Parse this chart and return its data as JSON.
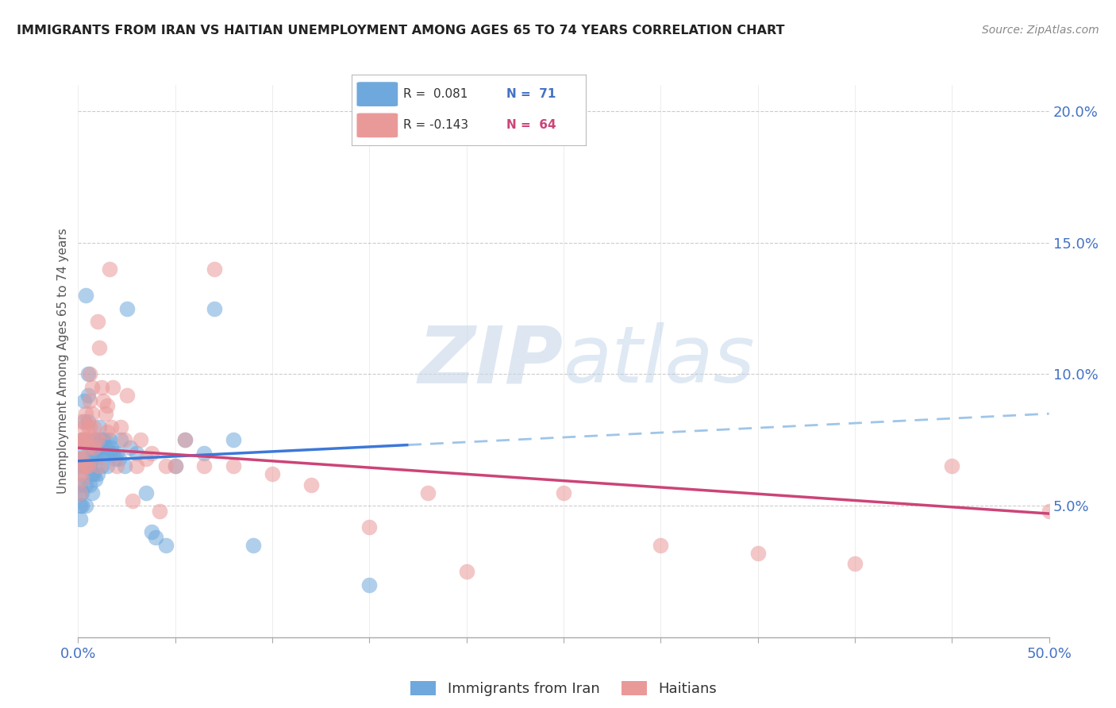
{
  "title": "IMMIGRANTS FROM IRAN VS HAITIAN UNEMPLOYMENT AMONG AGES 65 TO 74 YEARS CORRELATION CHART",
  "source": "Source: ZipAtlas.com",
  "ylabel": "Unemployment Among Ages 65 to 74 years",
  "legend1_label": "Immigrants from Iran",
  "legend2_label": "Haitians",
  "blue_color": "#9fc5e8",
  "blue_color_dark": "#6fa8dc",
  "pink_color": "#ea9999",
  "trend_blue_solid": "#3c78d8",
  "trend_pink_solid": "#cc4477",
  "trend_blue_dash": "#9fc5e8",
  "background": "#ffffff",
  "grid_color": "#cccccc",
  "watermark_zip": "ZIP",
  "watermark_atlas": "atlas",
  "xlim": [
    0.0,
    0.5
  ],
  "ylim": [
    0.0,
    0.21
  ],
  "blue_trend_start_x": 0.0,
  "blue_trend_solid_end_x": 0.17,
  "blue_trend_end_x": 0.5,
  "blue_trend_start_y": 0.067,
  "blue_trend_end_y": 0.085,
  "pink_trend_start_x": 0.0,
  "pink_trend_end_x": 0.5,
  "pink_trend_start_y": 0.072,
  "pink_trend_end_y": 0.047,
  "blue_points_x": [
    0.001,
    0.001,
    0.001,
    0.001,
    0.001,
    0.001,
    0.002,
    0.002,
    0.002,
    0.002,
    0.002,
    0.003,
    0.003,
    0.003,
    0.003,
    0.004,
    0.004,
    0.004,
    0.004,
    0.005,
    0.005,
    0.005,
    0.005,
    0.006,
    0.006,
    0.006,
    0.007,
    0.007,
    0.007,
    0.008,
    0.008,
    0.008,
    0.009,
    0.009,
    0.009,
    0.01,
    0.01,
    0.01,
    0.011,
    0.011,
    0.012,
    0.012,
    0.013,
    0.013,
    0.014,
    0.014,
    0.015,
    0.015,
    0.016,
    0.016,
    0.017,
    0.018,
    0.019,
    0.02,
    0.021,
    0.022,
    0.024,
    0.025,
    0.027,
    0.03,
    0.035,
    0.038,
    0.04,
    0.045,
    0.05,
    0.055,
    0.065,
    0.07,
    0.08,
    0.09,
    0.15
  ],
  "blue_points_y": [
    0.065,
    0.068,
    0.058,
    0.055,
    0.05,
    0.045,
    0.075,
    0.07,
    0.062,
    0.055,
    0.05,
    0.09,
    0.082,
    0.075,
    0.065,
    0.13,
    0.065,
    0.058,
    0.05,
    0.1,
    0.092,
    0.082,
    0.075,
    0.072,
    0.065,
    0.058,
    0.068,
    0.062,
    0.055,
    0.075,
    0.07,
    0.062,
    0.075,
    0.068,
    0.06,
    0.075,
    0.07,
    0.062,
    0.08,
    0.072,
    0.075,
    0.065,
    0.075,
    0.07,
    0.075,
    0.07,
    0.072,
    0.065,
    0.075,
    0.07,
    0.072,
    0.07,
    0.068,
    0.07,
    0.068,
    0.075,
    0.065,
    0.125,
    0.072,
    0.07,
    0.055,
    0.04,
    0.038,
    0.035,
    0.065,
    0.075,
    0.07,
    0.125,
    0.075,
    0.035,
    0.02
  ],
  "pink_points_x": [
    0.001,
    0.001,
    0.001,
    0.001,
    0.002,
    0.002,
    0.002,
    0.002,
    0.003,
    0.003,
    0.003,
    0.004,
    0.004,
    0.004,
    0.005,
    0.005,
    0.005,
    0.006,
    0.006,
    0.006,
    0.007,
    0.007,
    0.008,
    0.008,
    0.009,
    0.01,
    0.01,
    0.011,
    0.011,
    0.012,
    0.013,
    0.014,
    0.015,
    0.015,
    0.016,
    0.017,
    0.018,
    0.02,
    0.022,
    0.024,
    0.025,
    0.028,
    0.03,
    0.032,
    0.035,
    0.038,
    0.042,
    0.045,
    0.05,
    0.055,
    0.065,
    0.07,
    0.08,
    0.1,
    0.12,
    0.15,
    0.18,
    0.2,
    0.25,
    0.3,
    0.35,
    0.4,
    0.45,
    0.5
  ],
  "pink_points_y": [
    0.075,
    0.068,
    0.062,
    0.055,
    0.082,
    0.075,
    0.068,
    0.06,
    0.08,
    0.075,
    0.065,
    0.085,
    0.075,
    0.065,
    0.08,
    0.072,
    0.065,
    0.1,
    0.09,
    0.08,
    0.095,
    0.085,
    0.08,
    0.072,
    0.075,
    0.12,
    0.075,
    0.11,
    0.065,
    0.095,
    0.09,
    0.085,
    0.088,
    0.078,
    0.14,
    0.08,
    0.095,
    0.065,
    0.08,
    0.075,
    0.092,
    0.052,
    0.065,
    0.075,
    0.068,
    0.07,
    0.048,
    0.065,
    0.065,
    0.075,
    0.065,
    0.14,
    0.065,
    0.062,
    0.058,
    0.042,
    0.055,
    0.025,
    0.055,
    0.035,
    0.032,
    0.028,
    0.065,
    0.048
  ]
}
